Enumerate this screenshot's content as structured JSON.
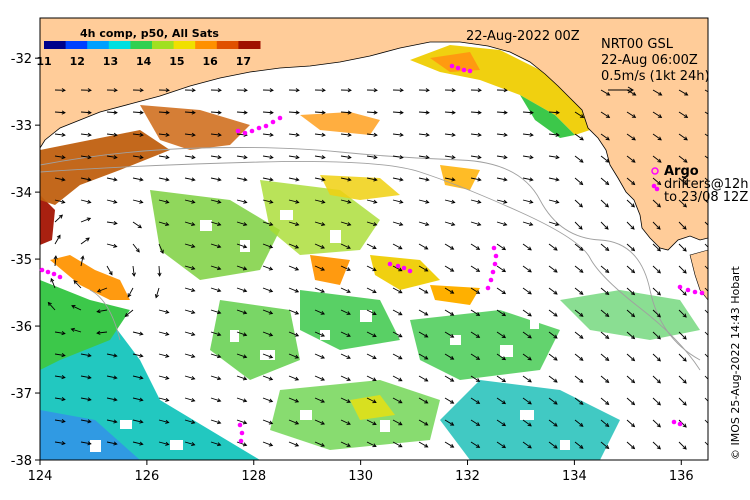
{
  "map": {
    "region": "Great Australian Bight",
    "lon_range": [
      124,
      136.5
    ],
    "lat_range": [
      -38,
      -31.4
    ],
    "lon_ticks": [
      "124",
      "126",
      "128",
      "130",
      "132",
      "134",
      "136"
    ],
    "lat_ticks": [
      "-32",
      "-33",
      "-34",
      "-35",
      "-36",
      "-37",
      "-38"
    ]
  },
  "colorbar": {
    "title": "4h comp, p50, All Sats",
    "labels": [
      "11",
      "12",
      "13",
      "14",
      "15",
      "16",
      "17"
    ],
    "range": [
      11,
      17.5
    ],
    "colors": [
      "#00008b",
      "#0040ff",
      "#00a0ff",
      "#00e0e0",
      "#30d050",
      "#a0e020",
      "#f0e000",
      "#ff9000",
      "#e05000",
      "#a01000"
    ]
  },
  "header": {
    "date": "22-Aug-2022 00Z"
  },
  "current_info": {
    "product": "NRT00 GSL",
    "time": "22-Aug 06:00Z",
    "scale": "0.5m/s (1kt 24h)"
  },
  "legend": {
    "argo": "Argo",
    "drifters": "drifters@12h",
    "drifters_to": "to 23/08 12Z"
  },
  "credit": "© IMOS 25-Aug-2022 14:43 Hobart",
  "colors": {
    "land": "#ffcc99",
    "marker": "#ff00ff",
    "bathy": "#a0a0a0"
  }
}
